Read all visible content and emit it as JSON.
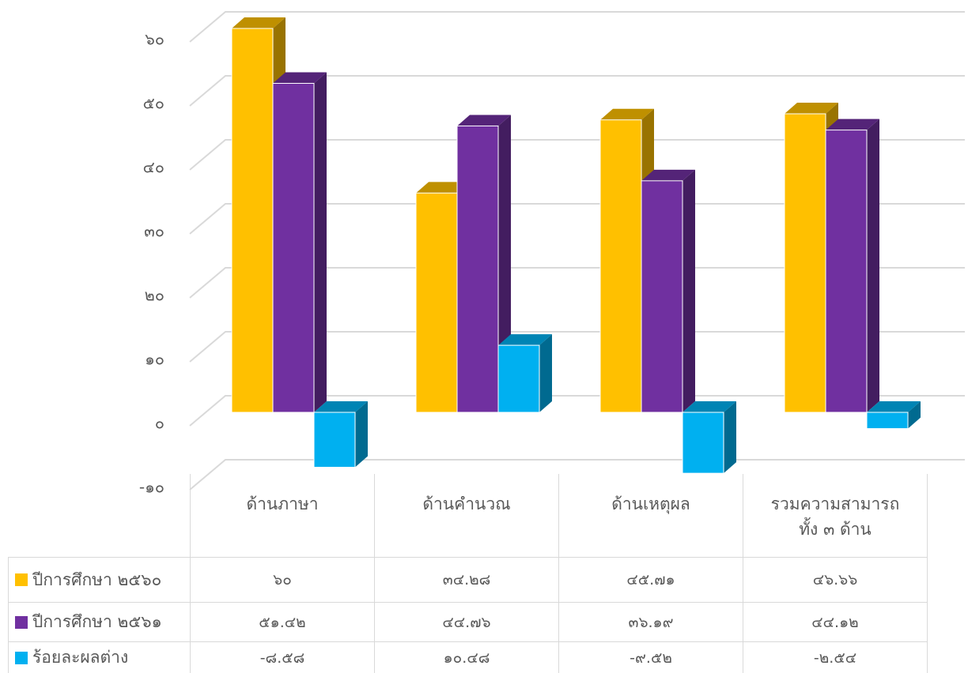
{
  "chart_data": {
    "type": "bar3d",
    "categories": [
      "ด้านภาษา",
      "ด้านคำนวณ",
      "ด้านเหตุผล",
      "รวมความสามารถ ทั้ง ๓ ด้าน"
    ],
    "series": [
      {
        "name": "ปีการศึกษา ๒๕๖๐",
        "color": "#FFC000",
        "values": [
          60,
          34.28,
          45.71,
          46.66
        ],
        "value_labels": [
          "๖๐",
          "๓๔.๒๘",
          "๔๕.๗๑",
          "๔๖.๖๖"
        ]
      },
      {
        "name": "ปีการศึกษา ๒๕๖๑",
        "color": "#7030A0",
        "values": [
          51.42,
          44.76,
          36.19,
          44.12
        ],
        "value_labels": [
          "๕๑.๔๒",
          "๔๔.๗๖",
          "๓๖.๑๙",
          "๔๔.๑๒"
        ]
      },
      {
        "name": "ร้อยละผลต่าง",
        "color": "#00B0F0",
        "values": [
          -8.58,
          10.48,
          -9.52,
          -2.54
        ],
        "value_labels": [
          "-๘.๕๘",
          "๑๐.๔๘",
          "-๙.๕๒",
          "-๒.๕๔"
        ]
      }
    ],
    "ylim": [
      -10,
      60
    ],
    "yticks": [
      {
        "value": -10,
        "label": "-๑๐"
      },
      {
        "value": 0,
        "label": "๐"
      },
      {
        "value": 10,
        "label": "๑๐"
      },
      {
        "value": 20,
        "label": "๒๐"
      },
      {
        "value": 30,
        "label": "๓๐"
      },
      {
        "value": 40,
        "label": "๔๐"
      },
      {
        "value": 50,
        "label": "๕๐"
      },
      {
        "value": 60,
        "label": "๖๐"
      }
    ],
    "grid": true
  }
}
